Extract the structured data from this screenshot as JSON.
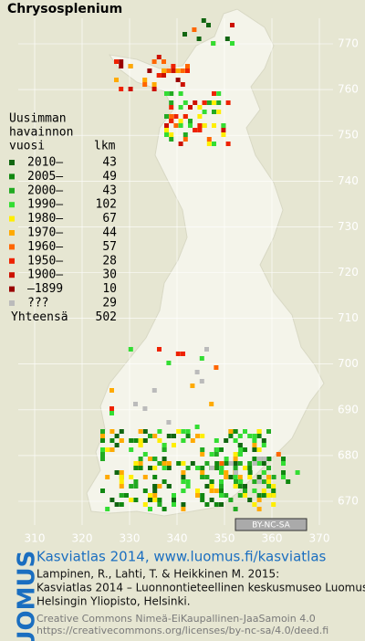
{
  "title": "Chrysosplenium",
  "legend": {
    "header": [
      "Uusimman",
      "havainnon",
      "vuosi"
    ],
    "count_header": "lkm",
    "items": [
      {
        "label": "2010–",
        "count": "43",
        "color": "#116611"
      },
      {
        "label": "2005–",
        "count": "49",
        "color": "#118811"
      },
      {
        "label": "2000–",
        "count": "43",
        "color": "#22aa22"
      },
      {
        "label": "1990–",
        "count": "102",
        "color": "#33dd33"
      },
      {
        "label": "1980–",
        "count": "67",
        "color": "#ffee00"
      },
      {
        "label": "1970–",
        "count": "44",
        "color": "#ffaa00"
      },
      {
        "label": "1960–",
        "count": "57",
        "color": "#ff6600"
      },
      {
        "label": "1950–",
        "count": "28",
        "color": "#ee2200"
      },
      {
        "label": "1900–",
        "count": "30",
        "color": "#cc1100"
      },
      {
        "label": "–1899",
        "count": "10",
        "color": "#990000"
      },
      {
        "label": "???",
        "count": "29",
        "color": "#bbbbbb"
      }
    ],
    "total_label": "Yhteensä",
    "total": "502"
  },
  "axes": {
    "y_labels": [
      "770",
      "760",
      "750",
      "740",
      "730",
      "720",
      "710",
      "700",
      "690",
      "680",
      "670"
    ],
    "x_labels": [
      "310",
      "320",
      "330",
      "340",
      "350",
      "360",
      "370"
    ]
  },
  "license_badge": "BY-NC-SA",
  "footer": {
    "logo": "LUOMUS",
    "heading": "Kasviatlas 2014, www.luomus.fi/kasviatlas",
    "citation": [
      "Lampinen, R., Lahti, T. & Heikkinen M. 2015:",
      "Kasviatlas 2014 – Luonnontieteellinen keskusmuseo Luomus,",
      "Helsingin Yliopisto, Helsinki."
    ],
    "license": [
      "Creative Commons Nimeä-EiKaupallinen-JaaSamoin 4.0",
      "https://creativecommons.org/licenses/by-nc-sa/4.0/deed.fi"
    ]
  }
}
